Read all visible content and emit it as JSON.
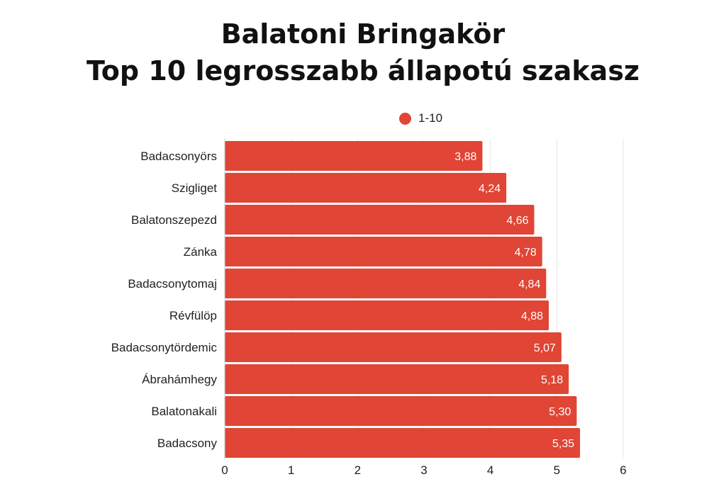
{
  "chart_data": {
    "type": "bar",
    "orientation": "horizontal",
    "title_lines": [
      "Balatoni Bringakör",
      "Top 10 legrosszabb állapotú szakasz"
    ],
    "categories": [
      "Badacsonyörs",
      "Szigliget",
      "Balatonszepezd",
      "Zánka",
      "Badacsonytomaj",
      "Révfülöp",
      "Badacsonytördemic",
      "Ábrahámhegy",
      "Balatonakali",
      "Badacsony"
    ],
    "series": [
      {
        "name": "1-10",
        "values": [
          3.88,
          4.24,
          4.66,
          4.78,
          4.84,
          4.88,
          5.07,
          5.18,
          5.3,
          5.35
        ],
        "value_labels": [
          "3,88",
          "4,24",
          "4,66",
          "4,78",
          "4,84",
          "4,88",
          "5,07",
          "5,18",
          "5,30",
          "5,35"
        ]
      }
    ],
    "xlim": [
      0,
      6
    ],
    "x_ticks": [
      0,
      1,
      2,
      3,
      4,
      5,
      6
    ],
    "grid": true,
    "legend_position": "top-center",
    "bar_color": "#e04535",
    "grid_color": "#e6e6e6"
  }
}
